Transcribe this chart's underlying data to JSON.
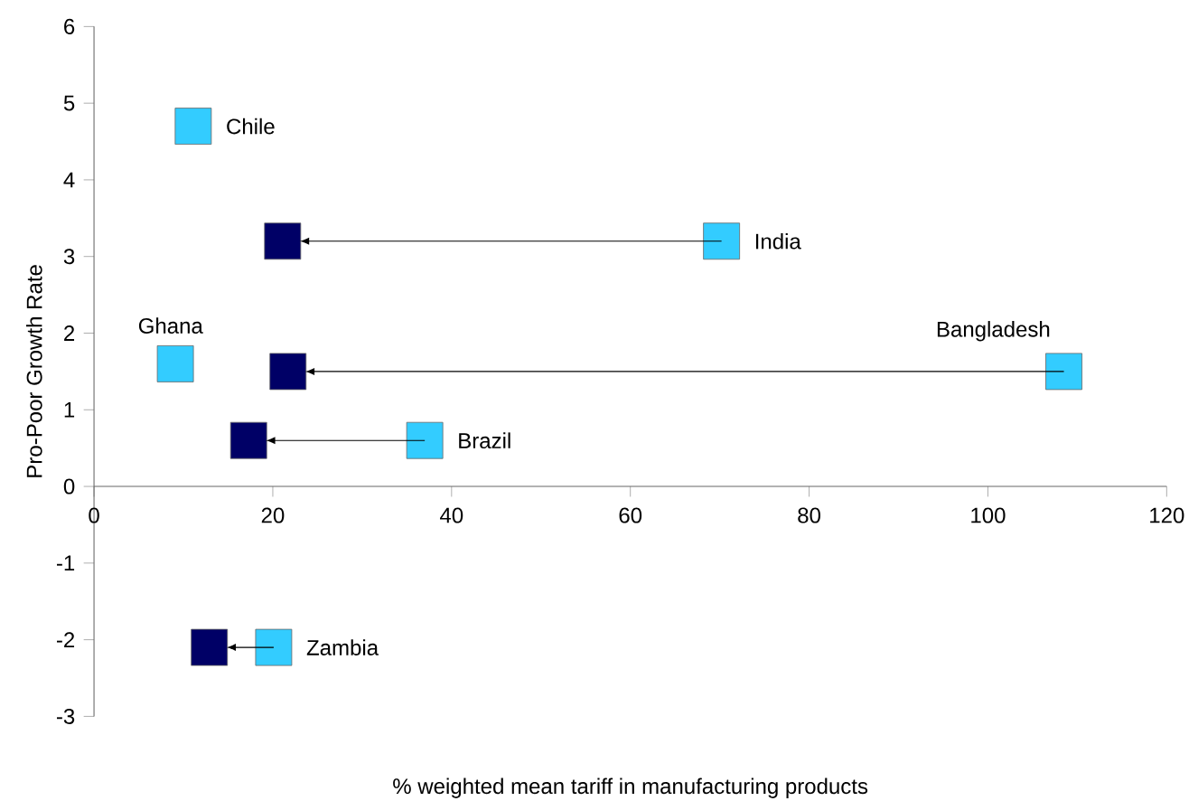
{
  "chart_data": {
    "type": "scatter",
    "xlabel": "% weighted mean tariff in manufacturing products",
    "ylabel": "Pro-Poor Growth Rate",
    "xlim": [
      0,
      120
    ],
    "ylim": [
      -3,
      6
    ],
    "xticks": [
      0,
      20,
      40,
      60,
      80,
      100,
      120
    ],
    "yticks": [
      -3,
      -2,
      -1,
      0,
      1,
      2,
      3,
      4,
      5,
      6
    ],
    "marker": "square",
    "series": [
      {
        "color": "#33ccff",
        "x": [
          11.1,
          70.2,
          9.1,
          108.5,
          37.0,
          20.1
        ],
        "values": [
          4.7,
          3.2,
          1.6,
          1.5,
          0.6,
          -2.1
        ]
      },
      {
        "color": "#000066",
        "x": [
          null,
          21.1,
          null,
          21.7,
          17.3,
          12.9
        ],
        "values": [
          null,
          3.2,
          null,
          1.5,
          0.6,
          -2.1
        ]
      }
    ],
    "annotations": [
      {
        "text": "Chile",
        "x": 11.1,
        "y": 4.7
      },
      {
        "text": "India",
        "x": 70.2,
        "y": 3.2
      },
      {
        "text": "Ghana",
        "x": 9.1,
        "y": 1.6
      },
      {
        "text": "Bangladesh",
        "x": 108.5,
        "y": 1.5
      },
      {
        "text": "Brazil",
        "x": 37.0,
        "y": 0.6
      },
      {
        "text": "Zambia",
        "x": 20.1,
        "y": -2.1
      }
    ]
  }
}
